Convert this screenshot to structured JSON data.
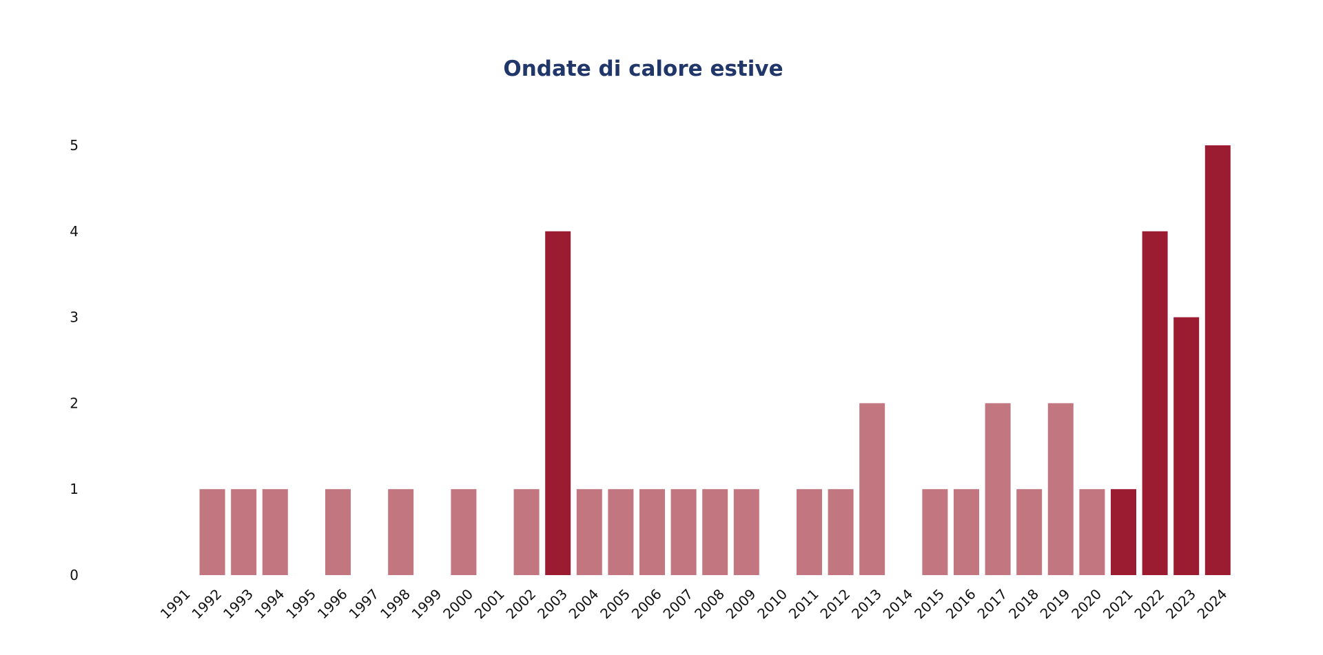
{
  "chart_data": {
    "type": "bar",
    "title": "Ondate di calore estive",
    "xlabel": "",
    "ylabel": "",
    "categories": [
      "1991",
      "1992",
      "1993",
      "1994",
      "1995",
      "1996",
      "1997",
      "1998",
      "1999",
      "2000",
      "2001",
      "2002",
      "2003",
      "2004",
      "2005",
      "2006",
      "2007",
      "2008",
      "2009",
      "2010",
      "2011",
      "2012",
      "2013",
      "2014",
      "2015",
      "2016",
      "2017",
      "2018",
      "2019",
      "2020",
      "2021",
      "2022",
      "2023",
      "2024"
    ],
    "values": [
      0,
      1,
      1,
      1,
      0,
      1,
      0,
      1,
      0,
      1,
      0,
      1,
      4,
      1,
      1,
      1,
      1,
      1,
      1,
      0,
      1,
      1,
      2,
      0,
      1,
      1,
      2,
      1,
      2,
      1,
      1,
      4,
      3,
      5
    ],
    "highlighted": [
      "2003",
      "2021",
      "2022",
      "2023",
      "2024"
    ],
    "ylim": [
      0,
      5
    ],
    "yticks": [
      0,
      1,
      2,
      3,
      4,
      5
    ],
    "grid": false,
    "colors": {
      "bar": "#c27680",
      "highlight": "#9b1b30",
      "title": "#213669"
    }
  }
}
